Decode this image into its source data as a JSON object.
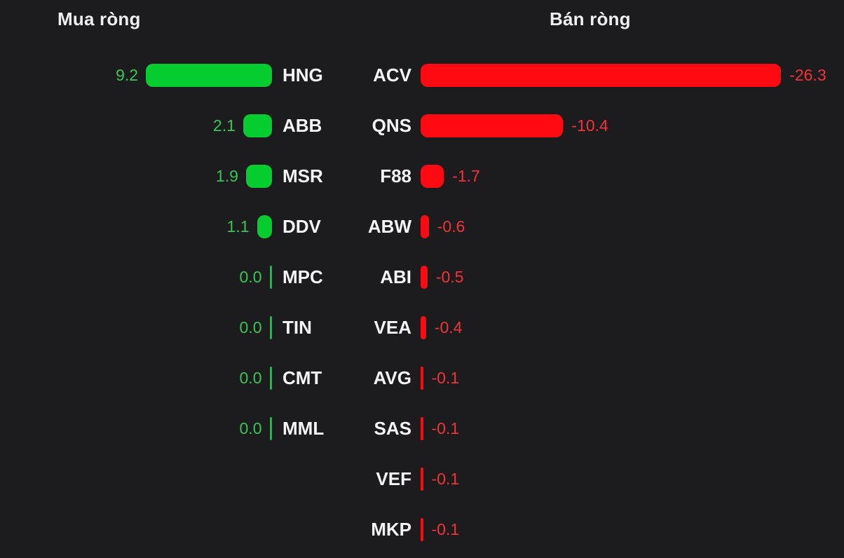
{
  "colors": {
    "background": "#1C1C1E",
    "header_text": "#EFEFF1",
    "ticker_text": "#F5F5F7",
    "buy_bar": "#06CD2F",
    "buy_value_text": "#35C656",
    "sell_bar": "#FF0A12",
    "sell_value_text": "#F43136"
  },
  "chart_data": {
    "type": "bar",
    "orientation": "horizontal",
    "legend_position": "none",
    "grid": false,
    "left": {
      "title": "Mua ròng",
      "items": [
        {
          "ticker": "HNG",
          "value": 9.2,
          "label": "9.2"
        },
        {
          "ticker": "ABB",
          "value": 2.1,
          "label": "2.1"
        },
        {
          "ticker": "MSR",
          "value": 1.9,
          "label": "1.9"
        },
        {
          "ticker": "DDV",
          "value": 1.1,
          "label": "1.1"
        },
        {
          "ticker": "MPC",
          "value": 0.0,
          "label": "0.0"
        },
        {
          "ticker": "TIN",
          "value": 0.0,
          "label": "0.0"
        },
        {
          "ticker": "CMT",
          "value": 0.0,
          "label": "0.0"
        },
        {
          "ticker": "MML",
          "value": 0.0,
          "label": "0.0"
        }
      ]
    },
    "right": {
      "title": "Bán ròng",
      "items": [
        {
          "ticker": "ACV",
          "value": -26.3,
          "label": "-26.3"
        },
        {
          "ticker": "QNS",
          "value": -10.4,
          "label": "-10.4"
        },
        {
          "ticker": "F88",
          "value": -1.7,
          "label": "-1.7"
        },
        {
          "ticker": "ABW",
          "value": -0.6,
          "label": "-0.6"
        },
        {
          "ticker": "ABI",
          "value": -0.5,
          "label": "-0.5"
        },
        {
          "ticker": "VEA",
          "value": -0.4,
          "label": "-0.4"
        },
        {
          "ticker": "AVG",
          "value": -0.1,
          "label": "-0.1"
        },
        {
          "ticker": "SAS",
          "value": -0.1,
          "label": "-0.1"
        },
        {
          "ticker": "VEF",
          "value": -0.1,
          "label": "-0.1"
        },
        {
          "ticker": "MKP",
          "value": -0.1,
          "label": "-0.1"
        }
      ]
    }
  }
}
